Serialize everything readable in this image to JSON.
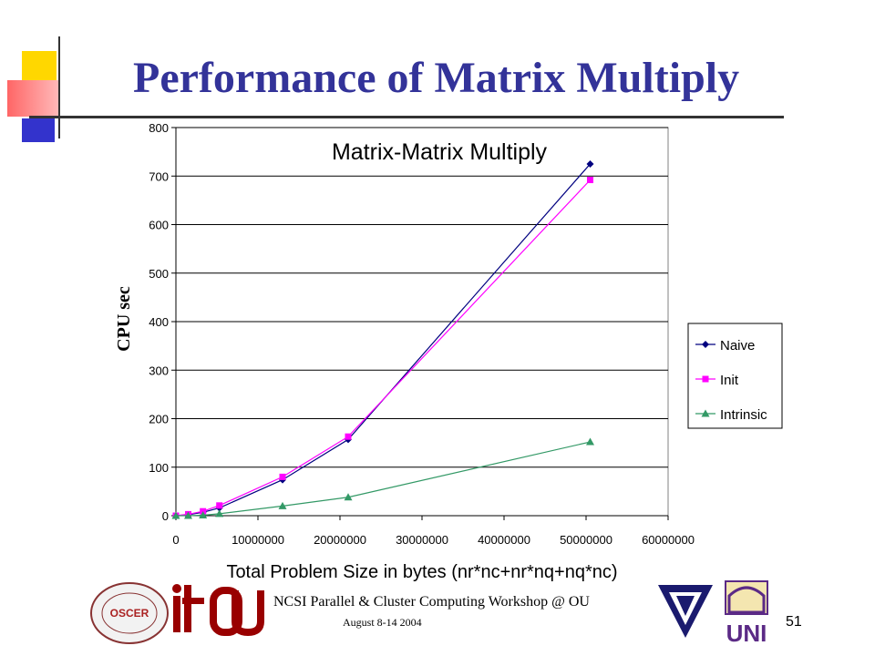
{
  "slide": {
    "title": "Performance of Matrix Multiply",
    "footer": "NCSI Parallel & Cluster Computing Workshop @ OU",
    "date": "August 8-14 2004",
    "page_number": "51",
    "logos": [
      "supercomputing-center-logo",
      "it-logo",
      "ou-logo",
      "triangle-logo",
      "uni-logo"
    ],
    "logo_text": {
      "oscer": "OSCER",
      "uni": "UNI"
    }
  },
  "colors": {
    "title": "#333399",
    "naive": "#000080",
    "init": "#FF00FF",
    "intrinsic": "#339966"
  },
  "chart_data": {
    "type": "line",
    "title": "Matrix-Matrix Multiply",
    "xlabel": "Total Problem Size in bytes (nr*nc+nr*nq+nq*nc)",
    "ylabel": "CPU sec",
    "xlim": [
      0,
      60000000
    ],
    "ylim": [
      0,
      800
    ],
    "xticks": [
      "0",
      "10000000",
      "20000000",
      "30000000",
      "40000000",
      "50000000",
      "60000000"
    ],
    "yticks": [
      "0",
      "100",
      "200",
      "300",
      "400",
      "500",
      "600",
      "700",
      "800"
    ],
    "grid": "horizontal",
    "legend_position": "right",
    "series": [
      {
        "name": "Naive",
        "marker": "diamond",
        "x": [
          0,
          1500000,
          3300000,
          5300000,
          13000000,
          21000000,
          50500000
        ],
        "y": [
          0,
          2,
          7,
          16,
          74,
          157,
          725
        ]
      },
      {
        "name": "Init",
        "marker": "square",
        "x": [
          0,
          1500000,
          3300000,
          5300000,
          13000000,
          21000000,
          50500000
        ],
        "y": [
          0,
          3,
          9,
          21,
          80,
          163,
          692
        ]
      },
      {
        "name": "Intrinsic",
        "marker": "triangle",
        "x": [
          0,
          1500000,
          3300000,
          5300000,
          13000000,
          21000000,
          50500000
        ],
        "y": [
          0,
          0,
          1,
          4,
          20,
          38,
          152
        ]
      }
    ]
  }
}
